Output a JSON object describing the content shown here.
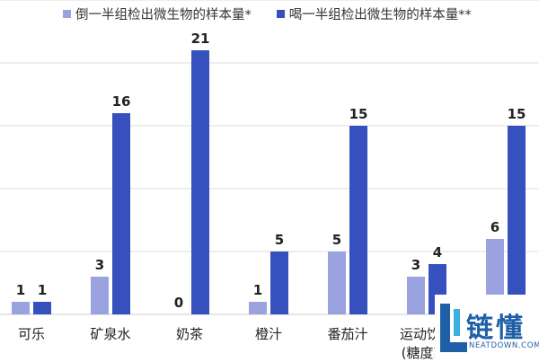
{
  "chart_data": {
    "type": "bar",
    "title": "",
    "xlabel": "",
    "ylabel": "",
    "ylim": [
      0,
      25
    ],
    "grid": true,
    "legend_position": "top",
    "categories": [
      [
        "可乐"
      ],
      [
        "矿泉水"
      ],
      [
        "奶茶"
      ],
      [
        "橙汁"
      ],
      [
        "番茄汁"
      ],
      [
        "运动饮料",
        "(糖度高)"
      ],
      [
        ""
      ]
    ],
    "series": [
      {
        "name": "倒一半组检出微生物的样本量*",
        "color": "#9aa3e0",
        "values": [
          1,
          3,
          0,
          1,
          5,
          3,
          6
        ]
      },
      {
        "name": "喝一半组检出微生物的样本量**",
        "color": "#3650be",
        "values": [
          1,
          16,
          21,
          5,
          15,
          4,
          15
        ]
      }
    ]
  },
  "watermark": {
    "text": "链懂",
    "subtext": "NEATDOWN.COM",
    "color": "#1f5fa8"
  }
}
